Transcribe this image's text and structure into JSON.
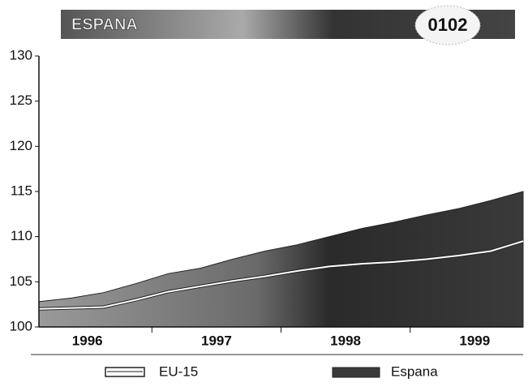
{
  "chart_data": {
    "type": "area",
    "title": "ESPANA",
    "annotations": [
      "0102"
    ],
    "categories": [
      null,
      "1996",
      null,
      null,
      null,
      "1997",
      null,
      null,
      null,
      "1998",
      null,
      null,
      null,
      "1999",
      null,
      null
    ],
    "series": [
      {
        "name": "Espana",
        "type": "area",
        "color": "#3a3a3a",
        "values": [
          102.8,
          103.2,
          103.8,
          104.8,
          105.9,
          106.5,
          107.5,
          108.4,
          109.1,
          110,
          110.9,
          111.6,
          112.4,
          113.1,
          114,
          115
        ]
      },
      {
        "name": "EU-15",
        "type": "line",
        "color": "#ffffff",
        "values": [
          102,
          102.1,
          102.2,
          103,
          103.9,
          104.5,
          105.1,
          105.6,
          106.2,
          106.7,
          107,
          107.2,
          107.5,
          107.9,
          108.4,
          109.5
        ]
      }
    ],
    "ylim": [
      100,
      130
    ],
    "yticks": [
      100,
      105,
      110,
      115,
      120,
      125,
      130
    ],
    "grid": false,
    "legend": "bottom"
  }
}
